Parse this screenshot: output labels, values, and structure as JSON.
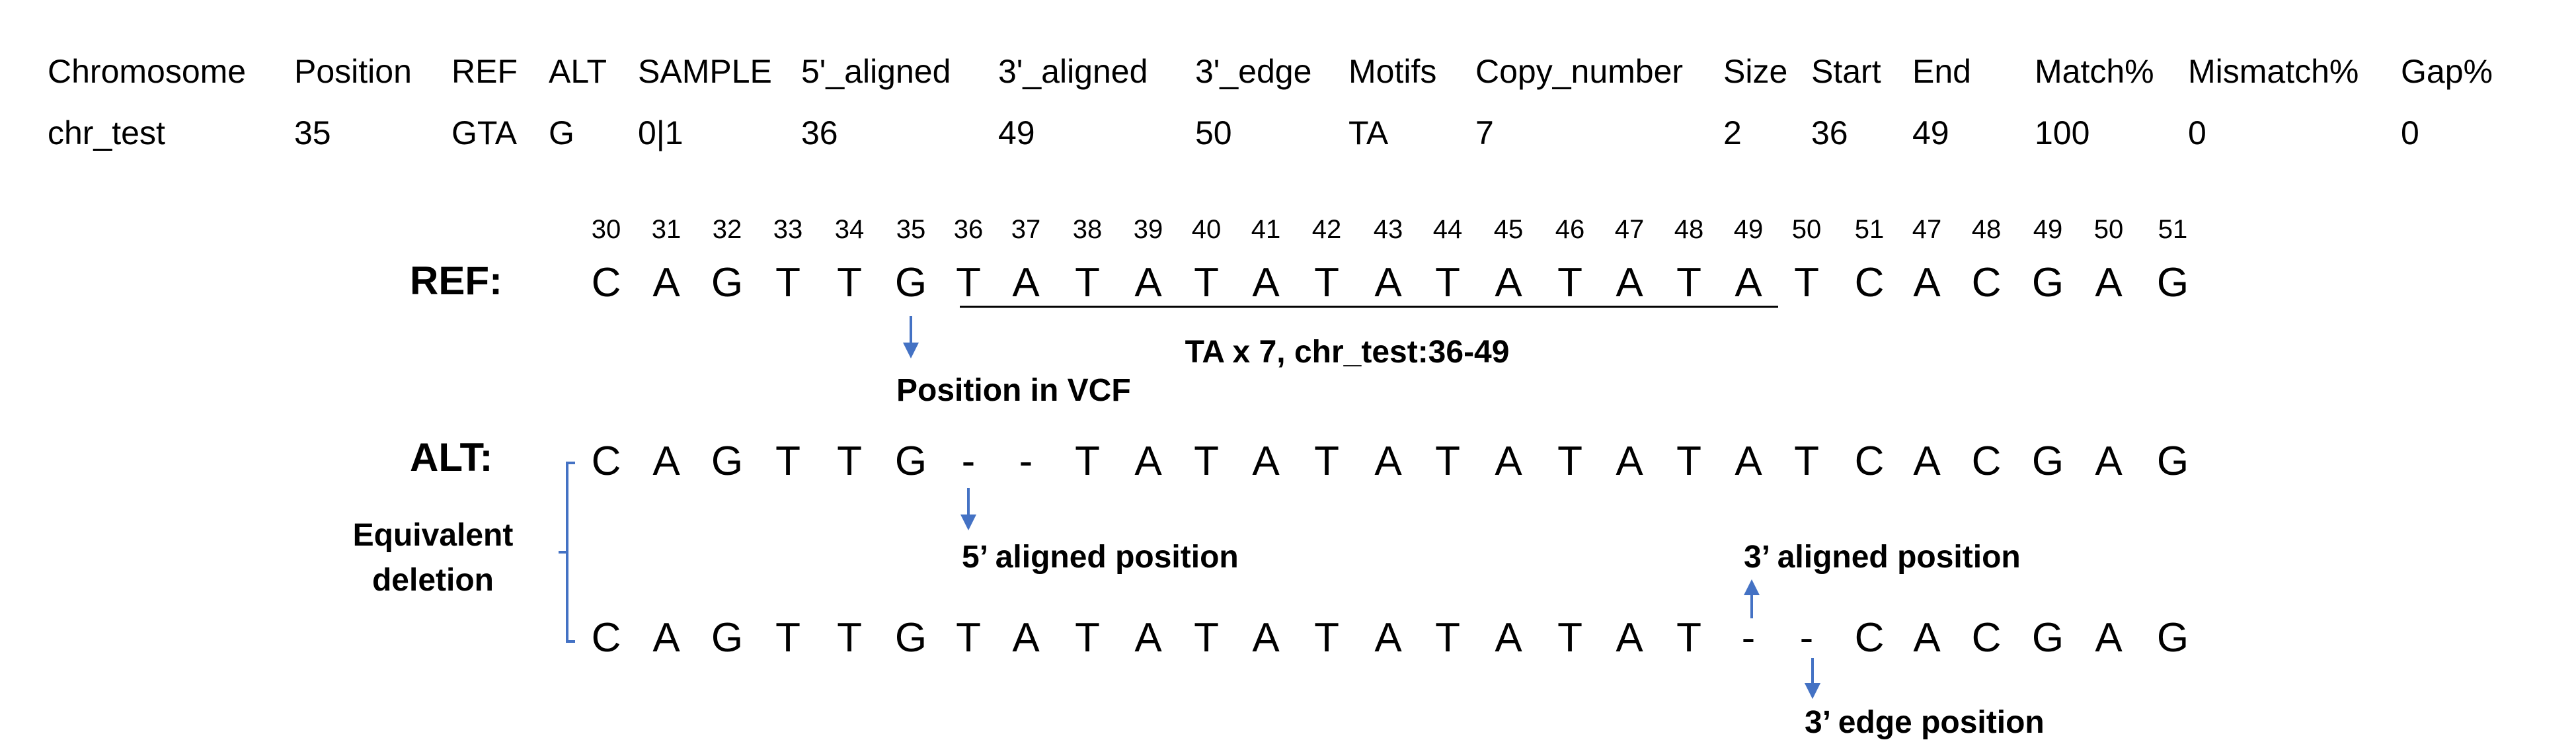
{
  "table": {
    "headers": [
      "Chromosome",
      "Position",
      "REF",
      "ALT",
      "SAMPLE",
      "5'_aligned",
      "3'_aligned",
      "3'_edge",
      "Motifs",
      "Copy_number",
      "Size",
      "Start",
      "End",
      "Match%",
      "Mismatch%",
      "Gap%"
    ],
    "row": [
      "chr_test",
      "35",
      "GTA",
      "G",
      "0|1",
      "36",
      "49",
      "50",
      "TA",
      "7",
      "2",
      "36",
      "49",
      "100",
      "0",
      "0"
    ]
  },
  "diagram": {
    "positions": [
      "30",
      "31",
      "32",
      "33",
      "34",
      "35",
      "36",
      "37",
      "38",
      "39",
      "40",
      "41",
      "42",
      "43",
      "44",
      "45",
      "46",
      "47",
      "48",
      "49",
      "50",
      "51",
      "47",
      "48",
      "49",
      "50",
      "51"
    ],
    "ref_label": "REF:",
    "ref_bases": [
      "C",
      "A",
      "G",
      "T",
      "T",
      "G",
      "T",
      "A",
      "T",
      "A",
      "T",
      "A",
      "T",
      "A",
      "T",
      "A",
      "T",
      "A",
      "T",
      "A",
      "T",
      "C",
      "A",
      "C",
      "G",
      "A",
      "G"
    ],
    "repeat_label": "TA x 7, chr_test:36-49",
    "vcf_position_label": "Position in VCF",
    "alt_label": "ALT:",
    "alt1_bases": [
      "C",
      "A",
      "G",
      "T",
      "T",
      "G",
      "-",
      "-",
      "T",
      "A",
      "T",
      "A",
      "T",
      "A",
      "T",
      "A",
      "T",
      "A",
      "T",
      "A",
      "T",
      "C",
      "A",
      "C",
      "G",
      "A",
      "G"
    ],
    "alt2_bases": [
      "C",
      "A",
      "G",
      "T",
      "T",
      "G",
      "T",
      "A",
      "T",
      "A",
      "T",
      "A",
      "T",
      "A",
      "T",
      "A",
      "T",
      "A",
      "T",
      "-",
      "-",
      "C",
      "A",
      "C",
      "G",
      "A",
      "G"
    ],
    "equivalent_label_line1": "Equivalent",
    "equivalent_label_line2": "deletion",
    "five_prime_label": "5’ aligned position",
    "three_prime_label": "3’ aligned position",
    "three_edge_label": "3’ edge position",
    "arrow_color": "#4472C4"
  }
}
